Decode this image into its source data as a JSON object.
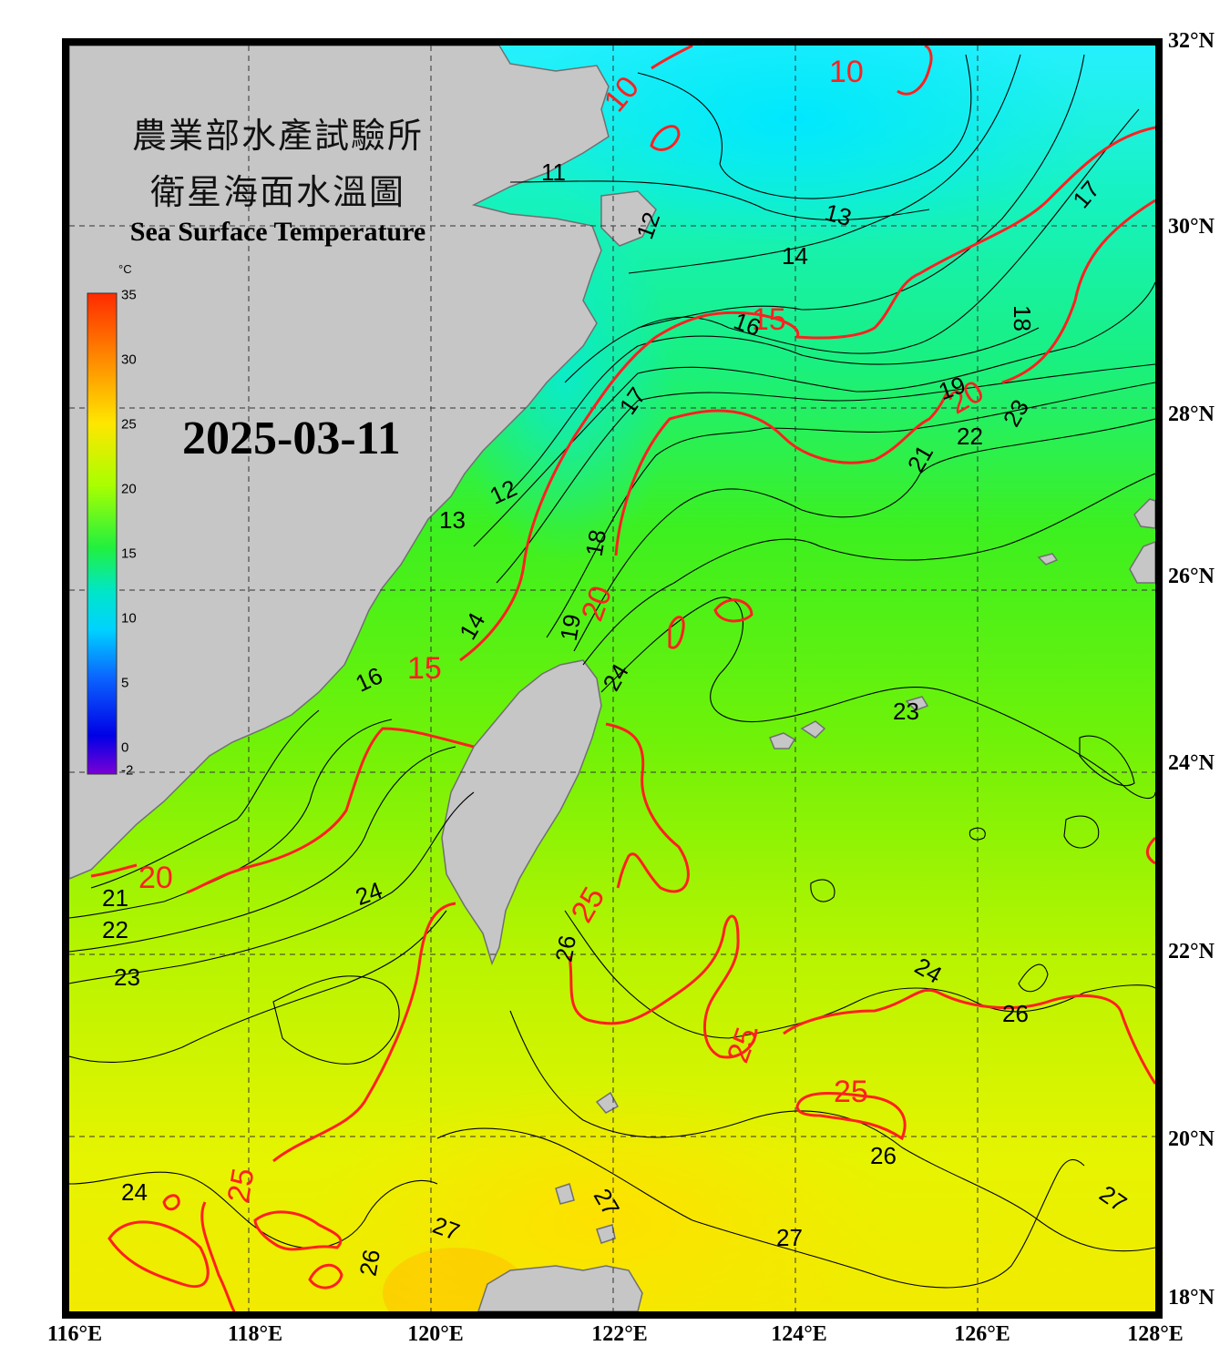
{
  "title": {
    "line1": "農業部水產試驗所",
    "line2": "衛星海面水溫圖",
    "english": "Sea Surface Temperature"
  },
  "date": "2025-03-11",
  "colorbar": {
    "unit": "°C",
    "ticks": [
      "35",
      "30",
      "25",
      "20",
      "15",
      "10",
      "5",
      "0",
      "-2"
    ],
    "colors": [
      "#ff2a00",
      "#ff8c00",
      "#ffe600",
      "#c8ff00",
      "#3cff00",
      "#00e68c",
      "#00e6ff",
      "#0a64ff",
      "#0000e6",
      "#7a00d6"
    ]
  },
  "axes": {
    "latitude_labels": [
      "32°N",
      "30°N",
      "28°N",
      "26°N",
      "24°N",
      "22°N",
      "20°N",
      "18°N"
    ],
    "longitude_labels": [
      "116°E",
      "118°E",
      "120°E",
      "122°E",
      "124°E",
      "126°E",
      "128°E"
    ]
  },
  "contour_labels": {
    "red": [
      "10",
      "10",
      "15",
      "15",
      "20",
      "20",
      "20",
      "25",
      "25",
      "25",
      "25"
    ],
    "black": [
      "11",
      "12",
      "13",
      "14",
      "17",
      "16",
      "18",
      "19",
      "12",
      "13",
      "14",
      "16",
      "17",
      "18",
      "19",
      "21",
      "22",
      "23",
      "24",
      "21",
      "22",
      "23",
      "24",
      "26",
      "23",
      "24",
      "26",
      "26",
      "24",
      "27",
      "26",
      "27",
      "27",
      "27"
    ]
  },
  "colors": {
    "land": "#c6c6c6",
    "frame": "#000000",
    "major_contour": "#ff2020",
    "minor_contour": "#000000"
  }
}
